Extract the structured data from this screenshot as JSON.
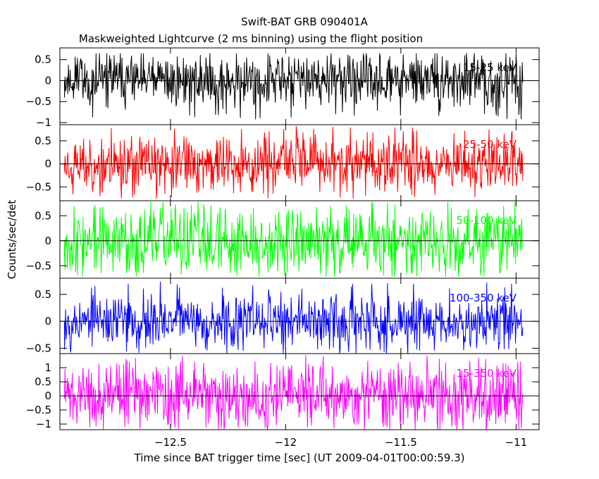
{
  "chart_data": {
    "type": "line",
    "title": "Swift-BAT GRB 090401A",
    "subtitle": "Maskweighted Lightcurve (2 ms binning) using the flight position",
    "xlabel": "Time since BAT trigger time [sec] (UT 2009-04-01T00:00:59.3)",
    "ylabel": "Counts/sec/det",
    "xlim": [
      -12.98,
      -10.9
    ],
    "xticks": [
      -12.5,
      -12,
      -11.5,
      -11
    ],
    "xtick_labels": [
      "−12.5",
      "−12",
      "−11.5",
      "−11"
    ],
    "data_x_range": [
      -12.96,
      -10.97
    ],
    "bin_width_s": 0.002,
    "series": [
      {
        "name": "15-25 keV",
        "color": "#000000",
        "ylim": [
          -1.05,
          0.78
        ],
        "yticks": [
          0.5,
          0,
          -0.5,
          -1
        ],
        "ytick_labels": [
          "0.5",
          "0",
          "−0.5",
          "−1"
        ],
        "amplitude": 0.32,
        "peak_range": [
          -0.95,
          0.65
        ],
        "seed": 11
      },
      {
        "name": "25-50 keV",
        "color": "#ff0000",
        "ylim": [
          -0.8,
          0.85
        ],
        "yticks": [
          0.5,
          0,
          -0.5
        ],
        "ytick_labels": [
          "0.5",
          "0",
          "−0.5"
        ],
        "amplitude": 0.3,
        "peak_range": [
          -0.75,
          0.82
        ],
        "seed": 23
      },
      {
        "name": "50-100 keV",
        "color": "#00ff00",
        "ylim": [
          -0.75,
          0.8
        ],
        "yticks": [
          0.5,
          0,
          -0.5
        ],
        "ytick_labels": [
          "0.5",
          "0",
          "−0.5"
        ],
        "amplitude": 0.33,
        "peak_range": [
          -0.72,
          0.78
        ],
        "seed": 37
      },
      {
        "name": "100-350 keV",
        "color": "#0000ff",
        "ylim": [
          -0.6,
          0.8
        ],
        "yticks": [
          0.5,
          0,
          -0.5
        ],
        "ytick_labels": [
          "0.5",
          "0",
          "−0.5"
        ],
        "amplitude": 0.25,
        "peak_range": [
          -0.6,
          0.75
        ],
        "seed": 53
      },
      {
        "name": "15-350 keV",
        "color": "#ff00ff",
        "ylim": [
          -1.2,
          1.5
        ],
        "yticks": [
          1,
          0.5,
          0,
          -0.5,
          -1
        ],
        "ytick_labels": [
          "1",
          "0.5",
          "0",
          "−0.5",
          "−1"
        ],
        "amplitude": 0.55,
        "peak_range": [
          -1.2,
          1.45
        ],
        "seed": 71
      }
    ]
  }
}
